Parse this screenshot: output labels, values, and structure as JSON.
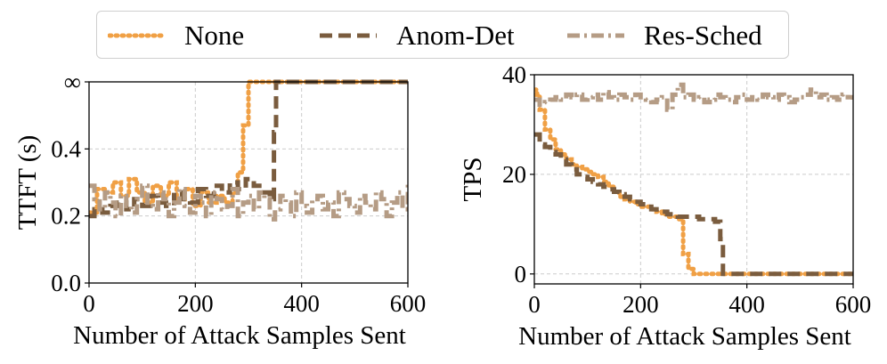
{
  "legend": {
    "none_label": "None",
    "anom_label": "Anom-Det",
    "res_label": "Res-Sched"
  },
  "series_styles": {
    "None": {
      "color": "#F0A045",
      "dash": "dot"
    },
    "Anom-Det": {
      "color": "#7A5C3E",
      "dash": "dash"
    },
    "Res-Sched": {
      "color": "#B59C85",
      "dash": "dashdot"
    }
  },
  "chart_data": [
    {
      "type": "line",
      "id": "ttft",
      "xlabel": "Number of Attack Samples Sent",
      "ylabel": "TTFT (s)",
      "xlim": [
        0,
        600
      ],
      "ylim": [
        0.0,
        0.6
      ],
      "xticks": [
        0,
        200,
        400,
        600
      ],
      "xtick_labels": [
        "0",
        "200",
        "400",
        "600"
      ],
      "yticks": [
        0.0,
        0.2,
        0.4,
        0.6
      ],
      "ytick_labels": [
        "0.0",
        "0.2",
        "0.4",
        "∞"
      ],
      "grid": true,
      "series": [
        {
          "name": "None",
          "x": [
            0,
            15,
            30,
            45,
            60,
            75,
            90,
            105,
            120,
            135,
            150,
            165,
            180,
            195,
            210,
            225,
            240,
            255,
            270,
            280,
            290,
            300,
            600
          ],
          "y": [
            0.21,
            0.28,
            0.27,
            0.3,
            0.26,
            0.31,
            0.27,
            0.24,
            0.29,
            0.26,
            0.3,
            0.25,
            0.28,
            0.23,
            0.27,
            0.24,
            0.26,
            0.24,
            0.27,
            0.33,
            0.47,
            0.6,
            0.6
          ]
        },
        {
          "name": "Anom-Det",
          "x": [
            0,
            10,
            25,
            40,
            55,
            70,
            85,
            100,
            115,
            130,
            145,
            160,
            175,
            190,
            205,
            220,
            235,
            250,
            265,
            280,
            295,
            310,
            325,
            340,
            348,
            352,
            600
          ],
          "y": [
            0.2,
            0.22,
            0.21,
            0.23,
            0.24,
            0.22,
            0.25,
            0.23,
            0.26,
            0.24,
            0.23,
            0.27,
            0.25,
            0.24,
            0.28,
            0.26,
            0.29,
            0.27,
            0.3,
            0.28,
            0.31,
            0.29,
            0.27,
            0.25,
            0.45,
            0.6,
            0.6
          ]
        },
        {
          "name": "Res-Sched",
          "x": [
            0,
            10,
            20,
            30,
            40,
            50,
            60,
            70,
            80,
            90,
            100,
            110,
            120,
            130,
            140,
            150,
            160,
            170,
            180,
            190,
            200,
            210,
            220,
            230,
            240,
            250,
            260,
            270,
            280,
            290,
            300,
            310,
            320,
            330,
            340,
            350,
            360,
            370,
            380,
            390,
            400,
            410,
            420,
            430,
            440,
            450,
            460,
            470,
            480,
            490,
            500,
            510,
            520,
            530,
            540,
            550,
            560,
            570,
            580,
            590,
            600
          ],
          "y": [
            0.29,
            0.25,
            0.22,
            0.27,
            0.24,
            0.2,
            0.26,
            0.23,
            0.21,
            0.25,
            0.29,
            0.23,
            0.22,
            0.27,
            0.25,
            0.2,
            0.24,
            0.28,
            0.23,
            0.21,
            0.26,
            0.24,
            0.2,
            0.27,
            0.25,
            0.22,
            0.23,
            0.28,
            0.2,
            0.24,
            0.26,
            0.22,
            0.27,
            0.25,
            0.19,
            0.22,
            0.26,
            0.24,
            0.2,
            0.27,
            0.23,
            0.21,
            0.25,
            0.26,
            0.22,
            0.24,
            0.2,
            0.27,
            0.25,
            0.23,
            0.21,
            0.26,
            0.24,
            0.22,
            0.27,
            0.25,
            0.2,
            0.24,
            0.27,
            0.22,
            0.3
          ]
        }
      ]
    },
    {
      "type": "line",
      "id": "tps",
      "xlabel": "Number of Attack Samples Sent",
      "ylabel": "TPS",
      "xlim": [
        0,
        600
      ],
      "ylim": [
        -2,
        40
      ],
      "xticks": [
        0,
        200,
        400,
        600
      ],
      "xtick_labels": [
        "0",
        "200",
        "400",
        "600"
      ],
      "yticks": [
        0,
        20,
        40
      ],
      "ytick_labels": [
        "0",
        "20",
        "40"
      ],
      "grid": true,
      "series": [
        {
          "name": "None",
          "x": [
            0,
            5,
            10,
            20,
            30,
            40,
            50,
            60,
            70,
            80,
            90,
            100,
            110,
            120,
            130,
            140,
            150,
            160,
            170,
            180,
            190,
            200,
            210,
            220,
            230,
            240,
            250,
            260,
            270,
            280,
            290,
            300,
            310,
            600
          ],
          "y": [
            37,
            36,
            33,
            29,
            27,
            25,
            24,
            23,
            22,
            21.5,
            21,
            20.5,
            20,
            19.5,
            18.5,
            17.5,
            16.5,
            15.5,
            15,
            14.5,
            14,
            13.5,
            13.5,
            13,
            12.5,
            12,
            11.5,
            11.5,
            11,
            4,
            1,
            0,
            0,
            0
          ]
        },
        {
          "name": "Anom-Det",
          "x": [
            0,
            10,
            20,
            30,
            40,
            50,
            60,
            70,
            80,
            90,
            100,
            110,
            120,
            130,
            140,
            150,
            160,
            170,
            180,
            190,
            200,
            210,
            220,
            230,
            240,
            250,
            260,
            270,
            280,
            290,
            300,
            310,
            320,
            330,
            340,
            350,
            355,
            600
          ],
          "y": [
            28,
            26,
            25.5,
            24.5,
            24,
            23,
            22,
            21,
            20,
            19.5,
            19,
            18.5,
            18,
            17.5,
            17,
            16.5,
            16,
            15.5,
            15,
            14.5,
            14,
            13.5,
            13,
            12.5,
            12.5,
            12,
            12,
            11.5,
            11.5,
            11.5,
            11.5,
            11,
            11,
            11,
            10.5,
            7,
            0,
            0
          ]
        },
        {
          "name": "Res-Sched",
          "x": [
            0,
            10,
            20,
            30,
            40,
            50,
            60,
            70,
            80,
            90,
            100,
            110,
            120,
            130,
            140,
            150,
            160,
            170,
            180,
            190,
            200,
            210,
            220,
            230,
            240,
            250,
            260,
            270,
            280,
            290,
            300,
            310,
            320,
            330,
            340,
            350,
            360,
            370,
            380,
            390,
            400,
            410,
            420,
            430,
            440,
            450,
            460,
            470,
            480,
            490,
            500,
            510,
            520,
            530,
            540,
            550,
            560,
            570,
            580,
            590,
            600
          ],
          "y": [
            35,
            34,
            34.5,
            35,
            35.5,
            35,
            36,
            35.5,
            36,
            35,
            35.5,
            36,
            35,
            36.5,
            35.5,
            35,
            36,
            35.5,
            35,
            36,
            35.5,
            35,
            34.5,
            35,
            35.5,
            33,
            36,
            38,
            35.5,
            36,
            35,
            35.5,
            34.5,
            35,
            36,
            35.5,
            35,
            34.5,
            35.5,
            36,
            35,
            35.5,
            35,
            36,
            35.5,
            35,
            36,
            35.5,
            34.5,
            35,
            35.5,
            36,
            37,
            35.5,
            36,
            35,
            35.5,
            35,
            36,
            35.5,
            35
          ]
        }
      ]
    }
  ]
}
